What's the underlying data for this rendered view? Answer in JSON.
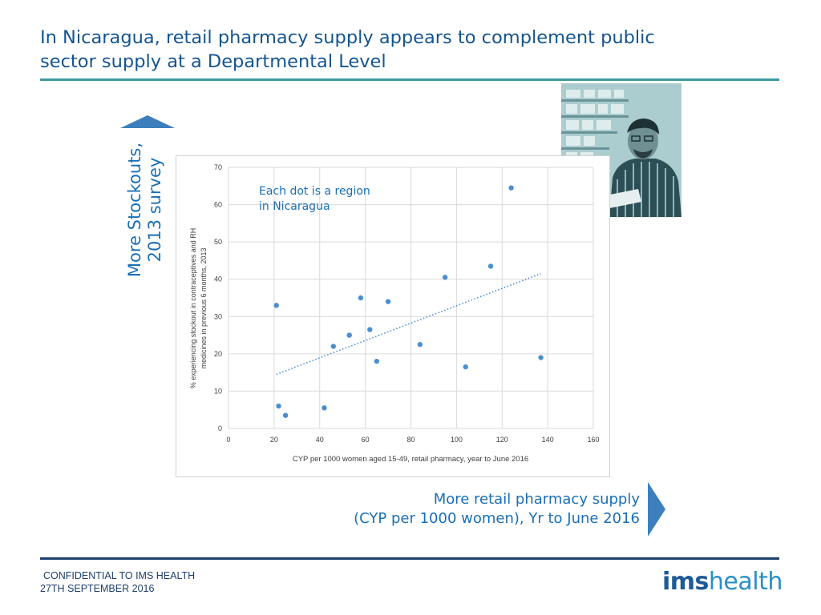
{
  "slide": {
    "title_line1": "In Nicaragua, retail pharmacy supply appears to complement public",
    "title_line2": "sector supply at a Departmental Level",
    "y_callout_line1": "More Stockouts,",
    "y_callout_line2": "2013 survey",
    "x_callout_line1": "More retail pharmacy supply",
    "x_callout_line2": "(CYP per 1000 women), Yr to June 2016",
    "footer_line1": "CONFIDENTIAL TO IMS HEALTH",
    "footer_line2": "27TH SEPTEMBER 2016",
    "logo_part1": "ims",
    "logo_part2": "health"
  },
  "colors": {
    "title": "#14558f",
    "callout": "#1a6fb5",
    "arrow": "#3d7fbd",
    "points": "#4a8fcf",
    "trendline": "#4a8fcf",
    "rule": "#3f9aa0",
    "footer": "#1d3f6e"
  },
  "photo_icon": "pharmacist-photo",
  "chart_data": {
    "type": "scatter",
    "title": "",
    "xlabel": "CYP per 1000 women aged 15-49, retail pharmacy, year to June 2016",
    "ylabel_line1": "% experiencing stockout in contraceptives and RH",
    "ylabel_line2": "medicines in previous 6 months, 2013",
    "annotation_line1": "Each dot is a region",
    "annotation_line2": "in Nicaragua",
    "xlim": [
      0,
      160
    ],
    "ylim": [
      0,
      70
    ],
    "xticks": [
      "0",
      "20",
      "40",
      "60",
      "80",
      "100",
      "120",
      "140",
      "160"
    ],
    "yticks": [
      "0",
      "10",
      "20",
      "30",
      "40",
      "50",
      "60",
      "70"
    ],
    "grid": true,
    "points": [
      {
        "x": 21,
        "y": 33
      },
      {
        "x": 22,
        "y": 6
      },
      {
        "x": 25,
        "y": 3.5
      },
      {
        "x": 42,
        "y": 5.5
      },
      {
        "x": 46,
        "y": 22
      },
      {
        "x": 53,
        "y": 25
      },
      {
        "x": 58,
        "y": 35
      },
      {
        "x": 62,
        "y": 26.5
      },
      {
        "x": 65,
        "y": 18
      },
      {
        "x": 70,
        "y": 34
      },
      {
        "x": 84,
        "y": 22.5
      },
      {
        "x": 95,
        "y": 40.5
      },
      {
        "x": 104,
        "y": 16.5
      },
      {
        "x": 115,
        "y": 43.5
      },
      {
        "x": 124,
        "y": 64.5
      },
      {
        "x": 137,
        "y": 19
      }
    ],
    "trendline": {
      "x1": 21,
      "y1": 14.5,
      "x2": 137,
      "y2": 41.5
    }
  }
}
